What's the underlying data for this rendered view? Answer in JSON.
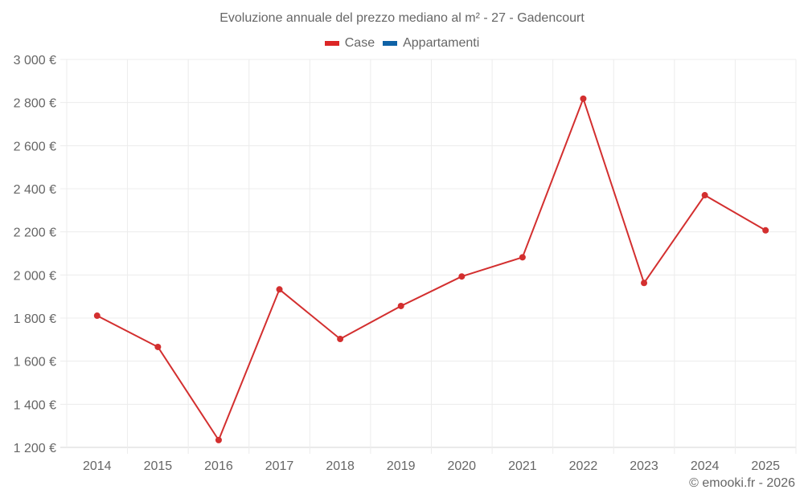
{
  "header": {
    "title": "Evoluzione annuale del prezzo mediano al m² - 27 - Gadencourt"
  },
  "legend": [
    {
      "label": "Case",
      "color": "#dc2626"
    },
    {
      "label": "Appartamenti",
      "color": "#0f62a6"
    }
  ],
  "footer": {
    "credit": "© emooki.fr - 2026"
  },
  "chart_data": {
    "type": "line",
    "title": "Evoluzione annuale del prezzo mediano al m² - 27 - Gadencourt",
    "xlabel": "",
    "ylabel": "",
    "categories": [
      "2014",
      "2015",
      "2016",
      "2017",
      "2018",
      "2019",
      "2020",
      "2021",
      "2022",
      "2023",
      "2024",
      "2025"
    ],
    "series": [
      {
        "name": "Case",
        "color": "#d32f2f",
        "values": [
          1811,
          1666,
          1234,
          1933,
          1703,
          1856,
          1993,
          2082,
          2818,
          1963,
          2370,
          2207
        ]
      },
      {
        "name": "Appartamenti",
        "color": "#0f62a6",
        "values": []
      }
    ],
    "ylim": [
      1200,
      3000
    ],
    "yticks": [
      1200,
      1400,
      1600,
      1800,
      2000,
      2200,
      2400,
      2600,
      2800,
      3000
    ],
    "ytick_labels": [
      "1 200 €",
      "1 400 €",
      "1 600 €",
      "1 800 €",
      "2 000 €",
      "2 200 €",
      "2 400 €",
      "2 600 €",
      "2 800 €",
      "3 000 €"
    ],
    "grid": true,
    "legend_position": "top"
  }
}
